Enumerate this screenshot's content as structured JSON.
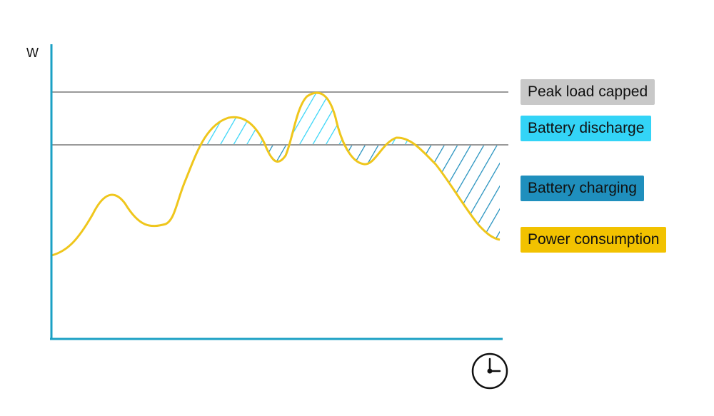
{
  "y_unit": "W",
  "legend": {
    "peak": {
      "label": "Peak load capped",
      "color": "#c8c8c8"
    },
    "discharge": {
      "label": "Battery discharge",
      "color": "#33d4f7"
    },
    "charging": {
      "label": "Battery charging",
      "color": "#1f8fbd"
    },
    "power": {
      "label": "Power consumption",
      "color": "#f2c200"
    }
  },
  "colors": {
    "axis": "#1aa0c4",
    "threshold": "#9a9a9a",
    "curve": "#efc61c"
  },
  "icons": {
    "time": "clock-icon"
  }
}
